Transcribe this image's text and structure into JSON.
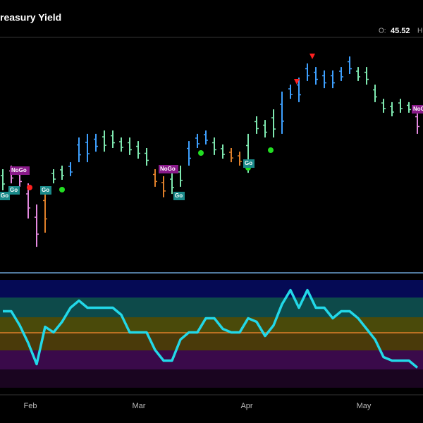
{
  "chart_data": {
    "type": "ohlc",
    "title": "reasury Yield",
    "open_label": "O:",
    "open_value": "45.52",
    "high_label": "H",
    "months": [
      "Feb",
      "Mar",
      "Apr",
      "May"
    ],
    "annotations": [
      "NoGo",
      "Go",
      "Go",
      "Go",
      "NoGo",
      "Go",
      "Go",
      "NoGo"
    ],
    "ylim": [
      38,
      48
    ],
    "y2lim": [
      -6,
      6
    ],
    "bars": {
      "high": [
        42,
        42.17,
        42,
        41.33,
        40.33,
        41.17,
        42,
        42.17,
        42.33,
        43.5,
        43.67,
        43.67,
        43.83,
        43.83,
        43.5,
        43.5,
        43.33,
        43,
        42,
        41.67,
        41.83,
        42.17,
        43.33,
        43.67,
        43.83,
        43.5,
        43.17,
        43,
        42.83,
        43.67,
        44.5,
        44.33,
        44.83,
        45.67,
        46,
        46.33,
        47,
        46.83,
        46.67,
        46.67,
        46.83,
        47.33,
        46.83,
        46.83,
        46,
        45.33,
        45.17,
        45.33,
        45.17,
        44.83
      ],
      "low": [
        41,
        41.33,
        41.17,
        39.67,
        38.33,
        39,
        41.33,
        41.5,
        41.67,
        42.33,
        42.33,
        42.83,
        42.83,
        43,
        42.83,
        42.67,
        42.5,
        42.17,
        41.17,
        40.67,
        40.83,
        41.17,
        42.17,
        43,
        43.17,
        42.67,
        42.5,
        42.33,
        42.17,
        41.83,
        43.67,
        43.5,
        43.5,
        43.67,
        45.33,
        45.17,
        46.17,
        46,
        45.83,
        45.83,
        46.17,
        46.5,
        46.17,
        46,
        45.17,
        44.67,
        44.5,
        44.67,
        44.67,
        43.67
      ],
      "colors": [
        "#7ee8b0",
        "#e58ae0",
        "#e58ae0",
        "#e58ae0",
        "#e58ae0",
        "#e0802a",
        "#7ee8b0",
        "#7ee8b0",
        "#3ea0ff",
        "#3ea0ff",
        "#3ea0ff",
        "#3ea0ff",
        "#7ee8b0",
        "#7ee8b0",
        "#7ee8b0",
        "#7ee8b0",
        "#7ee8b0",
        "#7ee8b0",
        "#e0802a",
        "#e0802a",
        "#7ee8b0",
        "#7ee8b0",
        "#3ea0ff",
        "#3ea0ff",
        "#3ea0ff",
        "#7ee8b0",
        "#7ee8b0",
        "#e0802a",
        "#e0802a",
        "#7ee8b0",
        "#7ee8b0",
        "#7ee8b0",
        "#7ee8b0",
        "#3ea0ff",
        "#3ea0ff",
        "#3ea0ff",
        "#3ea0ff",
        "#3ea0ff",
        "#3ea0ff",
        "#3ea0ff",
        "#3ea0ff",
        "#3ea0ff",
        "#7ee8b0",
        "#7ee8b0",
        "#7ee8b0",
        "#7ee8b0",
        "#7ee8b0",
        "#7ee8b0",
        "#7ee8b0",
        "#e58ae0"
      ]
    },
    "oscillator": {
      "color": "#22d8e8",
      "values": [
        2.51,
        2.51,
        0.94,
        -1.02,
        -3.37,
        0.78,
        0.16,
        1.33,
        2.9,
        3.69,
        2.9,
        2.9,
        2.9,
        2.9,
        2.12,
        0.16,
        0.16,
        0.16,
        -1.8,
        -2.98,
        -2.98,
        -0.63,
        0.16,
        0.16,
        1.73,
        1.73,
        0.55,
        0.16,
        0.16,
        1.73,
        1.33,
        -0.24,
        0.94,
        3.29,
        4.86,
        2.9,
        4.86,
        2.9,
        2.9,
        1.73,
        2.51,
        2.51,
        1.73,
        0.55,
        -0.63,
        -2.59,
        -2.98,
        -2.98,
        -2.98,
        -3.76
      ]
    }
  }
}
